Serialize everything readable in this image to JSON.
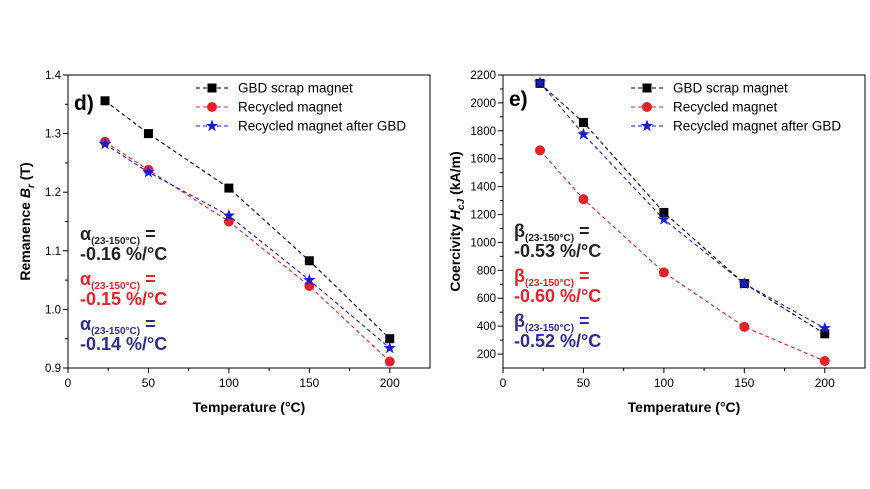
{
  "chart_data": [
    {
      "type": "line",
      "panel_label": "d)",
      "xlabel": "Temperature (°C)",
      "ylabel": "Remanence B_r (T)",
      "ylabel_parts": {
        "main": "Remanence ",
        "italic": "B",
        "sub": "r",
        "unit": " (T)"
      },
      "xlim": [
        0,
        225
      ],
      "ylim": [
        0.9,
        1.4
      ],
      "xticks": [
        0,
        50,
        100,
        150,
        200
      ],
      "yticks": [
        0.9,
        1.0,
        1.1,
        1.2,
        1.3,
        1.4
      ],
      "ytick_labels": [
        "0.9",
        "1.0",
        "1.1",
        "1.2",
        "1.3",
        "1.4"
      ],
      "legend_position": "top-right",
      "grid": false,
      "series": [
        {
          "name": "GBD scrap magnet",
          "marker": "square",
          "color": "#000000",
          "x": [
            23,
            50,
            100,
            150,
            200
          ],
          "y": [
            1.356,
            1.3,
            1.207,
            1.083,
            0.95
          ]
        },
        {
          "name": "Recycled magnet",
          "marker": "circle",
          "color": "#e8202a",
          "x": [
            23,
            50,
            100,
            150,
            200
          ],
          "y": [
            1.286,
            1.238,
            1.15,
            1.04,
            0.911
          ]
        },
        {
          "name": "Recycled magnet after GBD",
          "marker": "star",
          "color": "#1a1ad0",
          "x": [
            23,
            50,
            100,
            150,
            200
          ],
          "y": [
            1.282,
            1.234,
            1.16,
            1.05,
            0.934
          ]
        }
      ],
      "annotations": [
        {
          "symbol": "α",
          "sub": "(23-150°C)",
          "eq": " =",
          "value": "-0.16 %/°C",
          "color": "#222222"
        },
        {
          "symbol": "α",
          "sub": "(23-150°C)",
          "eq": " =",
          "value": "-0.15 %/°C",
          "color": "#e8202a"
        },
        {
          "symbol": "α",
          "sub": "(23-150°C)",
          "eq": " =",
          "value": "-0.14 %/°C",
          "color": "#2d2d8f"
        }
      ]
    },
    {
      "type": "line",
      "panel_label": "e)",
      "xlabel": "Temperature (°C)",
      "ylabel": "Coercivity H_cJ (kA/m)",
      "ylabel_parts": {
        "main": "Coercivity ",
        "italic": "H",
        "sub": "cJ",
        "unit": " (kA/m)"
      },
      "xlim": [
        0,
        225
      ],
      "ylim": [
        100,
        2200
      ],
      "xticks": [
        0,
        50,
        100,
        150,
        200
      ],
      "yticks": [
        200,
        400,
        600,
        800,
        1000,
        1200,
        1400,
        1600,
        1800,
        2000,
        2200
      ],
      "ytick_labels": [
        "200",
        "400",
        "600",
        "800",
        "1000",
        "1200",
        "1400",
        "1600",
        "1800",
        "2000",
        "2200"
      ],
      "legend_position": "top-right",
      "grid": false,
      "series": [
        {
          "name": "GBD scrap magnet",
          "marker": "square",
          "color": "#000000",
          "x": [
            23,
            50,
            100,
            150,
            200
          ],
          "y": [
            2140,
            1860,
            1215,
            705,
            345
          ]
        },
        {
          "name": "Recycled magnet",
          "marker": "circle",
          "color": "#e8202a",
          "x": [
            23,
            50,
            100,
            150,
            200
          ],
          "y": [
            1660,
            1310,
            785,
            395,
            150
          ]
        },
        {
          "name": "Recycled magnet after GBD",
          "marker": "star",
          "color": "#1a1ad0",
          "x": [
            23,
            50,
            100,
            150,
            200
          ],
          "y": [
            2145,
            1775,
            1165,
            705,
            385
          ]
        }
      ],
      "annotations": [
        {
          "symbol": "β",
          "sub": "(23-150°C)",
          "eq": " =",
          "value": "-0.53 %/°C",
          "color": "#222222"
        },
        {
          "symbol": "β",
          "sub": "(23-150°C)",
          "eq": " =",
          "value": "-0.60 %/°C",
          "color": "#e8202a"
        },
        {
          "symbol": "β",
          "sub": "(23-150°C)",
          "eq": " =",
          "value": "-0.52 %/°C",
          "color": "#2d2d8f"
        }
      ]
    }
  ]
}
